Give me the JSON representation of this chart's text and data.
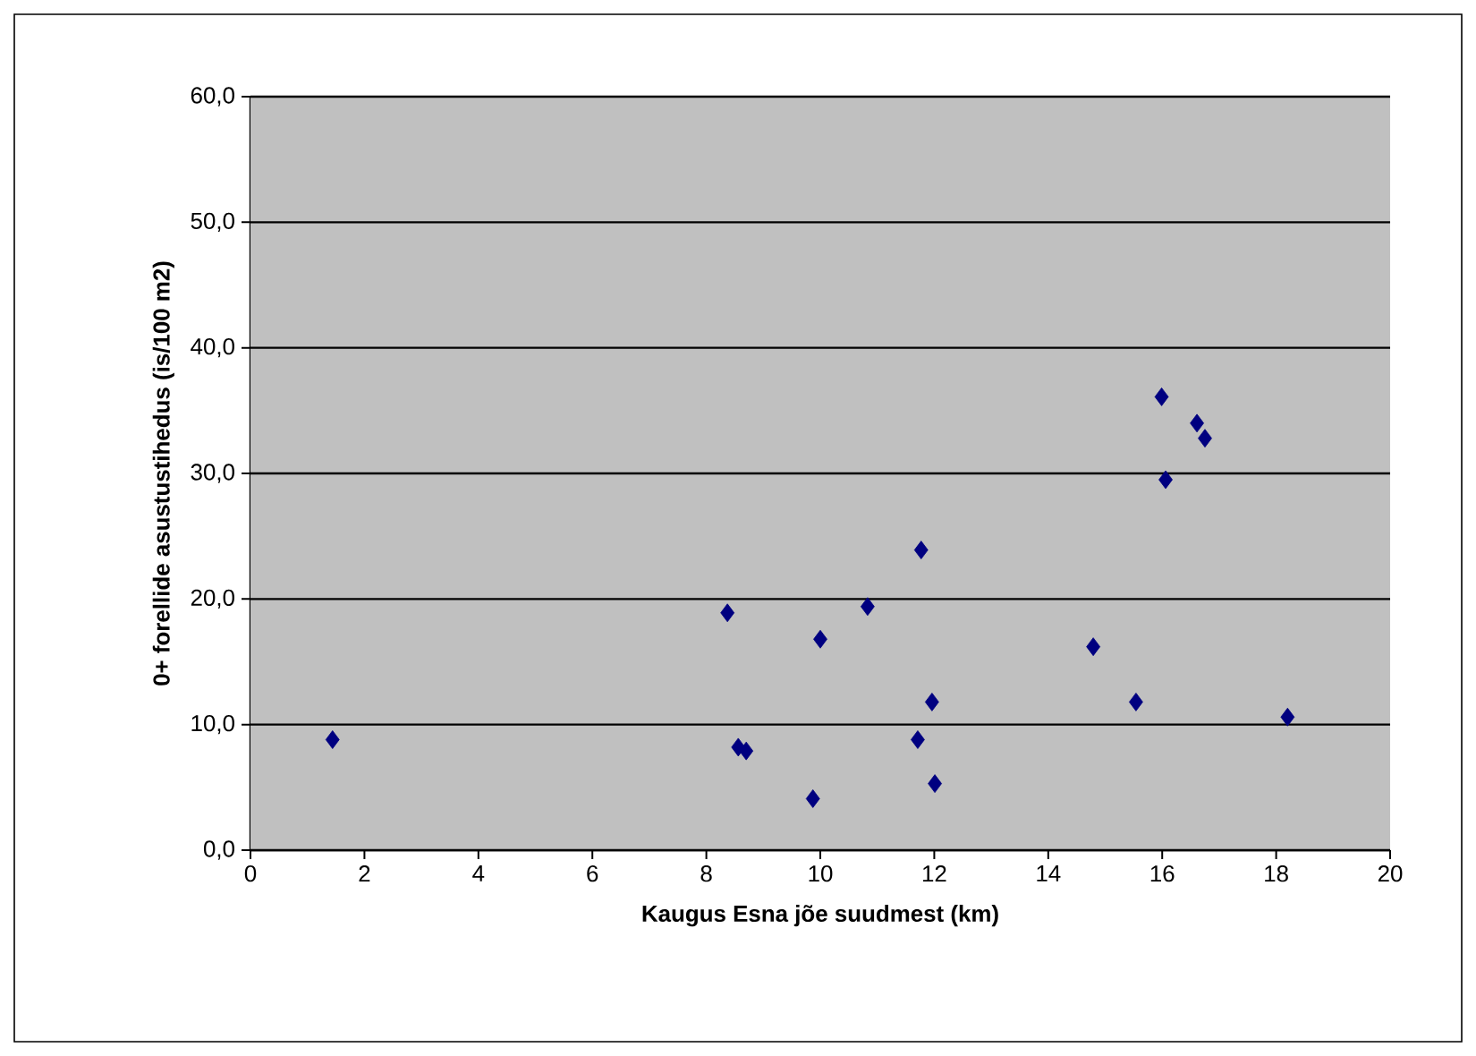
{
  "chart_data": {
    "type": "scatter",
    "xlabel": "Kaugus Esna jõe suudmest (km)",
    "ylabel": "0+ forellide asustustihedus (is/100 m2)",
    "x": [
      1.44,
      8.37,
      8.56,
      8.7,
      9.87,
      10.0,
      10.83,
      11.77,
      11.71,
      11.96,
      12.01,
      14.79,
      15.54,
      15.99,
      16.06,
      16.61,
      16.75,
      18.2
    ],
    "series": [
      {
        "color": "#000080",
        "values": [
          8.8,
          18.9,
          8.2,
          7.9,
          4.1,
          16.8,
          19.4,
          23.9,
          8.8,
          11.8,
          5.3,
          16.2,
          11.8,
          36.1,
          29.5,
          34.0,
          32.8,
          10.6
        ]
      }
    ],
    "xlim": [
      0,
      20
    ],
    "xticks": [
      0,
      2,
      4,
      6,
      8,
      10,
      12,
      14,
      16,
      18,
      20
    ],
    "ylim": [
      0,
      60
    ],
    "yticks": [
      {
        "value": 0,
        "label": "0,0"
      },
      {
        "value": 10,
        "label": "10,0"
      },
      {
        "value": 20,
        "label": "20,0"
      },
      {
        "value": 30,
        "label": "30,0"
      },
      {
        "value": 40,
        "label": "40,0"
      },
      {
        "value": 50,
        "label": "50,0"
      },
      {
        "value": 60,
        "label": "60,0"
      }
    ],
    "grid": "y",
    "marker": "diamond"
  }
}
